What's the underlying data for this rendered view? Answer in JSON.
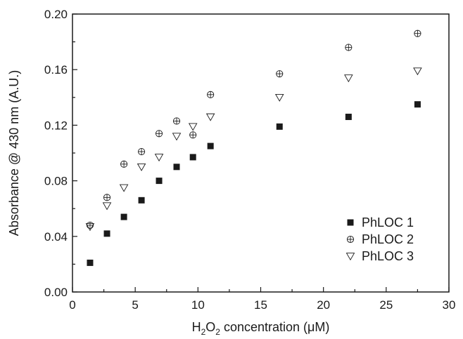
{
  "chart_data": {
    "type": "scatter",
    "xlabel": {
      "prefix": "H",
      "sub1": "2",
      "mid": "O",
      "sub2": "2",
      "suffix": " concentration (μM)"
    },
    "ylabel": "Absorbance @ 430 nm (A.U.)",
    "xlim": [
      0,
      30
    ],
    "ylim": [
      0,
      0.2
    ],
    "xticks": [
      "0",
      "5",
      "10",
      "15",
      "20",
      "25",
      "30"
    ],
    "yticks": [
      "0.00",
      "0.04",
      "0.08",
      "0.12",
      "0.16",
      "0.20"
    ],
    "grid": false,
    "legend_position": "bottom-right",
    "series": [
      {
        "name": "PhLOC 1",
        "marker": "filled-square",
        "color": "#1a1a1a",
        "points": [
          [
            1.4,
            0.021
          ],
          [
            2.75,
            0.042
          ],
          [
            4.1,
            0.054
          ],
          [
            5.5,
            0.066
          ],
          [
            6.9,
            0.08
          ],
          [
            8.3,
            0.09
          ],
          [
            9.6,
            0.097
          ],
          [
            11.0,
            0.105
          ],
          [
            16.5,
            0.119
          ],
          [
            22.0,
            0.126
          ],
          [
            27.5,
            0.135
          ]
        ]
      },
      {
        "name": "PhLOC 2",
        "marker": "circle-plus",
        "color": "#1a1a1a",
        "points": [
          [
            1.4,
            0.048
          ],
          [
            2.75,
            0.068
          ],
          [
            4.1,
            0.092
          ],
          [
            5.5,
            0.101
          ],
          [
            6.9,
            0.114
          ],
          [
            8.3,
            0.123
          ],
          [
            9.6,
            0.113
          ],
          [
            11.0,
            0.142
          ],
          [
            16.5,
            0.157
          ],
          [
            22.0,
            0.176
          ],
          [
            27.5,
            0.186
          ]
        ]
      },
      {
        "name": "PhLOC 3",
        "marker": "open-triangle-down",
        "color": "#1a1a1a",
        "points": [
          [
            1.4,
            0.047
          ],
          [
            2.75,
            0.062
          ],
          [
            4.1,
            0.075
          ],
          [
            5.5,
            0.09
          ],
          [
            6.9,
            0.097
          ],
          [
            8.3,
            0.112
          ],
          [
            9.6,
            0.119
          ],
          [
            11.0,
            0.126
          ],
          [
            16.5,
            0.14
          ],
          [
            22.0,
            0.154
          ],
          [
            27.5,
            0.159
          ]
        ]
      }
    ]
  }
}
